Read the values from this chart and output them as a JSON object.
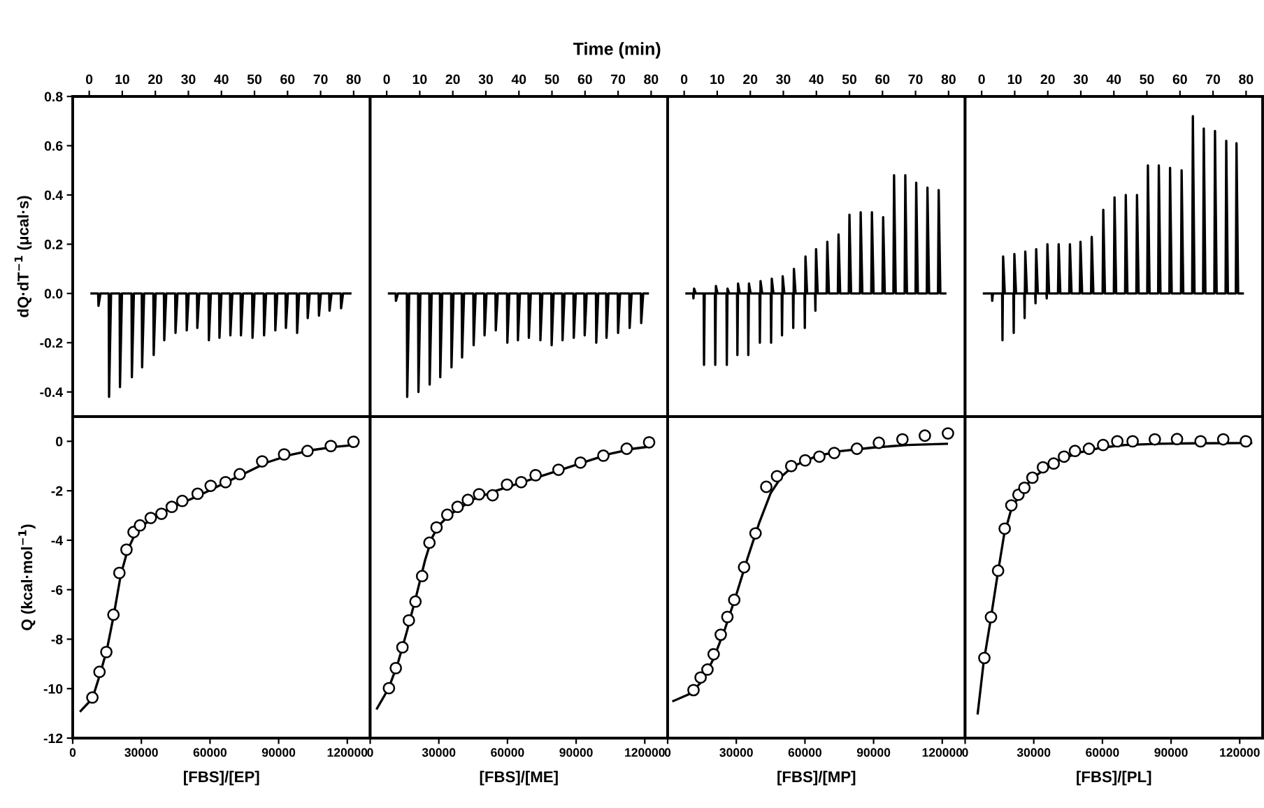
{
  "chart_data": [
    {
      "type": "line",
      "ylabel": "dQ·dT$^{−1}$ (μcal·s)",
      "xlim": [
        -5,
        85
      ],
      "xticks": [
        0,
        10,
        20,
        30,
        40,
        50,
        60,
        70,
        80
      ],
      "ylim": [
        -0.5,
        0.8
      ],
      "yticks": [
        0.8,
        0.6,
        0.4,
        0.2,
        {
          "value": 0,
          "label": "0.0"
        },
        -0.2,
        -0.4
      ],
      "grid": false,
      "legend": false,
      "marker": "none",
      "line_style": "solid",
      "series": [
        {
          "color": "#000000",
          "x": [
            0.7,
            2.7,
            2.8,
            3.4,
            5.9,
            6.0,
            6.6,
            9.2,
            9.3,
            9.9,
            12.8,
            12.9,
            13.5,
            15.9,
            16.0,
            16.6,
            19.4,
            19.5,
            20.1,
            22.6,
            22.7,
            23.3,
            26.0,
            26.1,
            26.7,
            29.4,
            29.5,
            30.1,
            32.6,
            32.7,
            33.3,
            36.1,
            36.2,
            36.8,
            39.3,
            39.4,
            40.0,
            42.6,
            42.7,
            43.3,
            45.8,
            45.9,
            46.5,
            49.3,
            49.4,
            50.0,
            52.8,
            52.9,
            53.5,
            56.2,
            56.3,
            56.9,
            59.4,
            59.5,
            60.1,
            62.8,
            62.9,
            63.5,
            66.0,
            66.1,
            66.7,
            69.4,
            69.5,
            70.1,
            72.6,
            72.7,
            73.3,
            76.1,
            76.2,
            76.8,
            79.0
          ],
          "values": [
            0,
            0,
            -0.05,
            0,
            0,
            -0.42,
            0,
            0,
            -0.38,
            0,
            0,
            -0.34,
            0,
            0,
            -0.3,
            0,
            0,
            -0.25,
            0,
            0,
            -0.19,
            0,
            0,
            -0.16,
            0,
            0,
            -0.15,
            0,
            0,
            -0.14,
            0,
            0,
            -0.19,
            0,
            0,
            -0.18,
            0,
            0,
            -0.17,
            0,
            0,
            -0.17,
            0,
            0,
            -0.18,
            0,
            0,
            -0.17,
            0,
            0,
            -0.15,
            0,
            0,
            -0.14,
            0,
            0,
            -0.16,
            0,
            0,
            -0.1,
            0,
            0,
            -0.09,
            0,
            0,
            -0.07,
            0,
            0,
            -0.06,
            0,
            0
          ]
        }
      ]
    },
    {
      "type": "line",
      "xlabel": "Time (min)",
      "xlim": [
        -5,
        85
      ],
      "xticks": [
        0,
        10,
        20,
        30,
        40,
        50,
        60,
        70,
        80
      ],
      "ylim": [
        -0.5,
        0.8
      ],
      "tick_labels": "x",
      "grid": false,
      "legend": false,
      "marker": "none",
      "line_style": "solid",
      "series": [
        {
          "color": "#000000",
          "x": [
            0.7,
            2.7,
            2.8,
            3.4,
            6.1,
            6.2,
            6.8,
            9.5,
            9.6,
            10.2,
            12.9,
            13.0,
            13.6,
            16.1,
            16.2,
            16.8,
            19.5,
            19.6,
            20.2,
            22.7,
            22.8,
            23.4,
            26.2,
            26.3,
            26.9,
            29.5,
            29.6,
            30.2,
            32.9,
            33.0,
            33.6,
            36.4,
            36.5,
            37.1,
            39.6,
            39.7,
            40.3,
            42.9,
            43.0,
            43.6,
            46.4,
            46.5,
            47.1,
            49.8,
            49.9,
            50.5,
            53.1,
            53.2,
            53.8,
            56.5,
            56.6,
            57.2,
            59.8,
            59.9,
            60.5,
            63.3,
            63.4,
            64.0,
            66.4,
            66.5,
            67.1,
            69.9,
            70.0,
            70.6,
            73.4,
            73.5,
            74.1,
            76.9,
            77.0,
            77.6,
            79.0
          ],
          "values": [
            0,
            0,
            -0.03,
            0,
            0,
            -0.42,
            0,
            0,
            -0.4,
            0,
            0,
            -0.37,
            0,
            0,
            -0.34,
            0,
            0,
            -0.3,
            0,
            0,
            -0.26,
            0,
            0,
            -0.21,
            0,
            0,
            -0.17,
            0,
            0,
            -0.15,
            0,
            0,
            -0.2,
            0,
            0,
            -0.19,
            0,
            0,
            -0.18,
            0,
            0,
            -0.19,
            0,
            0,
            -0.21,
            0,
            0,
            -0.19,
            0,
            0,
            -0.18,
            0,
            0,
            -0.17,
            0,
            0,
            -0.2,
            0,
            0,
            -0.18,
            0,
            0,
            -0.16,
            0,
            0,
            -0.14,
            0,
            0,
            -0.12,
            0,
            0
          ]
        }
      ]
    },
    {
      "type": "line",
      "xlim": [
        -5,
        85
      ],
      "xticks": [
        0,
        10,
        20,
        30,
        40,
        50,
        60,
        70,
        80
      ],
      "ylim": [
        -0.5,
        0.8
      ],
      "tick_labels": "x",
      "grid": false,
      "legend": false,
      "marker": "none",
      "line_style": "solid",
      "series": [
        {
          "color": "#000000",
          "x": [
            0.7,
            2.7,
            2.8,
            3.0,
            3.5,
            5.9,
            6.0,
            6.2,
            6.7,
            9.3,
            9.4,
            9.6,
            10.1,
            12.8,
            12.9,
            13.1,
            13.6,
            16.0,
            16.1,
            16.3,
            16.8,
            19.3,
            19.4,
            19.6,
            20.1,
            22.8,
            22.9,
            23.1,
            23.6,
            26.2,
            26.3,
            26.5,
            27.0,
            29.5,
            29.6,
            29.8,
            30.3,
            32.9,
            33.0,
            33.2,
            33.7,
            36.4,
            36.5,
            36.7,
            37.2,
            39.6,
            39.7,
            39.9,
            40.4,
            43.0,
            43.1,
            43.3,
            43.8,
            46.4,
            46.5,
            46.7,
            47.2,
            49.7,
            49.8,
            50.0,
            50.5,
            53.1,
            53.2,
            53.4,
            53.9,
            56.5,
            56.6,
            56.8,
            57.3,
            59.9,
            60.0,
            60.2,
            60.7,
            63.2,
            63.3,
            63.5,
            64.0,
            66.6,
            66.7,
            66.9,
            67.4,
            69.9,
            70.0,
            70.2,
            70.7,
            73.3,
            73.4,
            73.6,
            74.1,
            76.7,
            76.8,
            77.0,
            77.5,
            79.0
          ],
          "values": [
            0,
            0,
            -0.02,
            0.02,
            0,
            0,
            -0.29,
            0,
            0,
            0,
            -0.29,
            0.03,
            0,
            0,
            -0.29,
            0.02,
            0,
            0,
            -0.25,
            0.04,
            0,
            0,
            -0.25,
            0.04,
            0,
            0,
            -0.2,
            0.05,
            0,
            0,
            -0.2,
            0.06,
            0,
            0,
            -0.17,
            0.07,
            0,
            0,
            -0.14,
            0.1,
            0,
            0,
            -0.14,
            0.15,
            0,
            0,
            -0.07,
            0.18,
            0,
            0,
            0,
            0.21,
            0,
            0,
            0,
            0.24,
            0,
            0,
            0,
            0.32,
            0,
            0,
            0,
            0.33,
            0,
            0,
            0,
            0.33,
            0,
            0,
            0,
            0.31,
            0,
            0,
            0,
            0.48,
            0,
            0,
            0,
            0.48,
            0,
            0,
            0,
            0.45,
            0,
            0,
            0,
            0.43,
            0,
            0,
            0,
            0.42,
            0,
            0
          ]
        }
      ]
    },
    {
      "type": "line",
      "xlim": [
        -5,
        85
      ],
      "xticks": [
        0,
        10,
        20,
        30,
        40,
        50,
        60,
        70,
        80
      ],
      "ylim": [
        -0.5,
        0.8
      ],
      "tick_labels": "x",
      "grid": false,
      "legend": false,
      "marker": "none",
      "line_style": "solid",
      "series": [
        {
          "color": "#000000",
          "x": [
            0.7,
            3.1,
            3.2,
            3.4,
            3.9,
            6.2,
            6.3,
            6.5,
            7.0,
            9.6,
            9.7,
            9.9,
            10.4,
            12.9,
            13.0,
            13.2,
            13.7,
            16.2,
            16.3,
            16.5,
            17.0,
            19.6,
            19.7,
            19.9,
            20.4,
            23.0,
            23.1,
            23.3,
            23.8,
            26.4,
            26.5,
            26.7,
            27.2,
            29.6,
            29.7,
            29.9,
            30.4,
            33.0,
            33.1,
            33.3,
            33.8,
            36.5,
            36.6,
            36.8,
            37.3,
            39.9,
            40.0,
            40.2,
            40.7,
            43.3,
            43.4,
            43.6,
            44.1,
            46.7,
            46.8,
            47.0,
            47.5,
            50.0,
            50.1,
            50.3,
            50.8,
            53.3,
            53.4,
            53.6,
            54.1,
            56.7,
            56.8,
            57.0,
            57.5,
            60.2,
            60.3,
            60.5,
            61.0,
            63.6,
            63.7,
            63.9,
            64.4,
            66.9,
            67.0,
            67.2,
            67.7,
            70.3,
            70.4,
            70.6,
            71.1,
            73.7,
            73.8,
            74.0,
            74.5,
            76.8,
            76.9,
            77.1,
            77.6,
            79.0
          ],
          "values": [
            0,
            0,
            -0.03,
            0,
            0,
            0,
            -0.19,
            0.15,
            0,
            0,
            -0.16,
            0.16,
            0,
            0,
            -0.1,
            0.17,
            0,
            0,
            -0.04,
            0.18,
            0,
            0,
            -0.02,
            0.2,
            0,
            0,
            0,
            0.2,
            0,
            0,
            0,
            0.2,
            0,
            0,
            0,
            0.21,
            0,
            0,
            0,
            0.23,
            0,
            0,
            0,
            0.34,
            0,
            0,
            0,
            0.39,
            0,
            0,
            0,
            0.4,
            0,
            0,
            0,
            0.4,
            0,
            0,
            0,
            0.52,
            0,
            0,
            0,
            0.52,
            0,
            0,
            0,
            0.51,
            0,
            0,
            0,
            0.5,
            0,
            0,
            0,
            0.72,
            0,
            0,
            0,
            0.67,
            0,
            0,
            0,
            0.66,
            0,
            0,
            0,
            0.62,
            0,
            0,
            0,
            0.61,
            0,
            0
          ]
        }
      ]
    },
    {
      "type": "scatter",
      "xlabel": "[FBS]/[EP]",
      "ylabel": "Q (kcal·mol$^{−1}$)",
      "xlim": [
        0,
        130000
      ],
      "xticks": [
        0,
        30000,
        60000,
        90000,
        120000
      ],
      "ylim": [
        -12,
        1
      ],
      "yticks": [
        0,
        -2,
        -4,
        -6,
        -8,
        -10,
        -12
      ],
      "grid": false,
      "legend": false,
      "series": [
        {
          "color": "#000000",
          "marker": "circle",
          "x": [
            8600,
            11700,
            14700,
            17800,
            20400,
            23500,
            26600,
            29400,
            34100,
            38800,
            43300,
            47900,
            54600,
            60300,
            66800,
            73000,
            82800,
            92400,
            102600,
            112800,
            122700
          ],
          "values": [
            -10.36,
            -9.32,
            -8.52,
            -7.01,
            -5.32,
            -4.38,
            -3.67,
            -3.4,
            -3.1,
            -2.93,
            -2.65,
            -2.41,
            -2.12,
            -1.8,
            -1.65,
            -1.33,
            -0.81,
            -0.53,
            -0.39,
            -0.19,
            -0.02
          ]
        },
        {
          "type": "line",
          "color": "#000000",
          "x": [
            3500,
            8600,
            12000,
            15000,
            18000,
            21000,
            24000,
            27000,
            30000,
            35000,
            45000,
            55000,
            65000,
            75000,
            85000,
            95000,
            105000,
            115000,
            123000
          ],
          "values": [
            -10.9,
            -10.4,
            -9.4,
            -8.4,
            -7.0,
            -5.4,
            -4.4,
            -3.8,
            -3.45,
            -3.1,
            -2.6,
            -2.2,
            -1.75,
            -1.3,
            -0.85,
            -0.55,
            -0.35,
            -0.22,
            -0.15
          ]
        }
      ]
    },
    {
      "type": "scatter",
      "xlabel": "[FBS]/[ME]",
      "xlim": [
        0,
        130000
      ],
      "xticks": [
        0,
        30000,
        60000,
        90000,
        120000
      ],
      "ylim": [
        -12,
        1
      ],
      "tick_labels": "x",
      "grid": false,
      "legend": false,
      "series": [
        {
          "color": "#000000",
          "marker": "circle",
          "x": [
            8200,
            11200,
            14100,
            16900,
            19800,
            22700,
            25900,
            29000,
            33700,
            38200,
            42700,
            47600,
            53500,
            59800,
            66000,
            72300,
            82300,
            91900,
            101900,
            112100,
            121900
          ],
          "values": [
            -9.98,
            -9.17,
            -8.33,
            -7.24,
            -6.48,
            -5.45,
            -4.1,
            -3.48,
            -2.97,
            -2.65,
            -2.37,
            -2.14,
            -2.18,
            -1.75,
            -1.65,
            -1.37,
            -1.15,
            -0.86,
            -0.58,
            -0.3,
            -0.04
          ]
        },
        {
          "type": "line",
          "color": "#000000",
          "x": [
            3000,
            8000,
            12000,
            16000,
            20000,
            24000,
            27000,
            30000,
            35000,
            45000,
            55000,
            65000,
            75000,
            85000,
            95000,
            105000,
            115000,
            123000
          ],
          "values": [
            -10.8,
            -10.0,
            -9.0,
            -7.7,
            -6.3,
            -4.8,
            -3.9,
            -3.4,
            -2.95,
            -2.35,
            -2.0,
            -1.7,
            -1.4,
            -1.1,
            -0.8,
            -0.5,
            -0.3,
            -0.2
          ]
        }
      ]
    },
    {
      "type": "scatter",
      "xlabel": "[FBS]/[MP]",
      "xlim": [
        0,
        130000
      ],
      "xticks": [
        0,
        30000,
        60000,
        90000,
        120000
      ],
      "ylim": [
        -12,
        1
      ],
      "tick_labels": "x",
      "grid": false,
      "legend": false,
      "series": [
        {
          "color": "#000000",
          "marker": "circle",
          "x": [
            11300,
            14400,
            17400,
            20100,
            23200,
            26100,
            29100,
            33400,
            38400,
            43100,
            47800,
            54000,
            60100,
            66300,
            72800,
            82700,
            92300,
            102600,
            112400,
            122500
          ],
          "values": [
            -10.06,
            -9.55,
            -9.23,
            -8.61,
            -7.82,
            -7.1,
            -6.41,
            -5.09,
            -3.72,
            -1.84,
            -1.41,
            -1.0,
            -0.77,
            -0.62,
            -0.47,
            -0.3,
            -0.06,
            0.08,
            0.23,
            0.32
          ]
        },
        {
          "type": "line",
          "color": "#000000",
          "x": [
            2500,
            10000,
            15000,
            20000,
            25000,
            30000,
            35000,
            40000,
            45000,
            50000,
            55000,
            65000,
            75000,
            90000,
            105000,
            122000
          ],
          "values": [
            -10.5,
            -10.2,
            -9.7,
            -8.8,
            -7.6,
            -6.2,
            -4.7,
            -3.3,
            -2.1,
            -1.4,
            -1.0,
            -0.6,
            -0.4,
            -0.25,
            -0.15,
            -0.1
          ]
        }
      ]
    },
    {
      "type": "scatter",
      "xlabel": "[FBS]/[PL]",
      "xlim": [
        0,
        130000
      ],
      "xticks": [
        0,
        30000,
        60000,
        90000,
        120000
      ],
      "ylim": [
        -12,
        1
      ],
      "tick_labels": "x",
      "grid": false,
      "legend": false,
      "series": [
        {
          "color": "#000000",
          "marker": "circle",
          "x": [
            8400,
            11300,
            14400,
            17300,
            20200,
            23300,
            25900,
            29400,
            34000,
            38700,
            43200,
            48000,
            54100,
            60300,
            66500,
            73200,
            82900,
            92600,
            102900,
            112800,
            122700
          ],
          "values": [
            -8.76,
            -7.11,
            -5.23,
            -3.53,
            -2.59,
            -2.16,
            -1.88,
            -1.47,
            -1.05,
            -0.9,
            -0.62,
            -0.39,
            -0.3,
            -0.15,
            0.0,
            0.0,
            0.08,
            0.09,
            0.0,
            0.08,
            0.0
          ]
        },
        {
          "type": "line",
          "color": "#000000",
          "x": [
            5500,
            8000,
            11000,
            14000,
            17000,
            20000,
            25000,
            30000,
            40000,
            50000,
            60000,
            70000,
            85000,
            100000,
            125000
          ],
          "values": [
            -11.0,
            -9.0,
            -7.3,
            -5.5,
            -3.8,
            -2.8,
            -1.95,
            -1.45,
            -0.8,
            -0.45,
            -0.25,
            -0.15,
            -0.1,
            -0.08,
            -0.07
          ]
        }
      ]
    }
  ]
}
